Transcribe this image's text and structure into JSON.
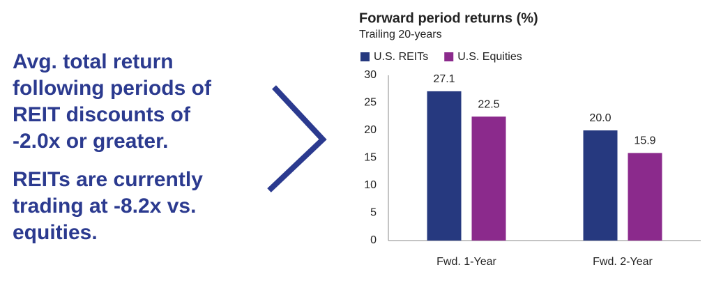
{
  "left_text": {
    "paragraphs": [
      [
        "Avg. total return",
        "following periods of",
        "REIT discounts of",
        "-2.0x or greater."
      ],
      [
        "REITs are currently",
        "trading at -8.2x vs.",
        "equities."
      ]
    ]
  },
  "chart_data": {
    "type": "bar",
    "title": "Forward period returns (%)",
    "subtitle": "Trailing 20-years",
    "categories": [
      "Fwd. 1-Year",
      "Fwd. 2-Year"
    ],
    "series": [
      {
        "name": "U.S. REITs",
        "color": "#26397f",
        "values": [
          27.1,
          20
        ],
        "value_labels": [
          "27.1",
          "20.0"
        ]
      },
      {
        "name": "U.S. Equities",
        "color": "#8b2a8c",
        "values": [
          22.5,
          15.9
        ],
        "value_labels": [
          "22.5",
          "15.9"
        ]
      }
    ],
    "ylim": [
      0,
      30
    ],
    "yticks": [
      0,
      5,
      10,
      15,
      20,
      25,
      30
    ],
    "grid": false
  }
}
